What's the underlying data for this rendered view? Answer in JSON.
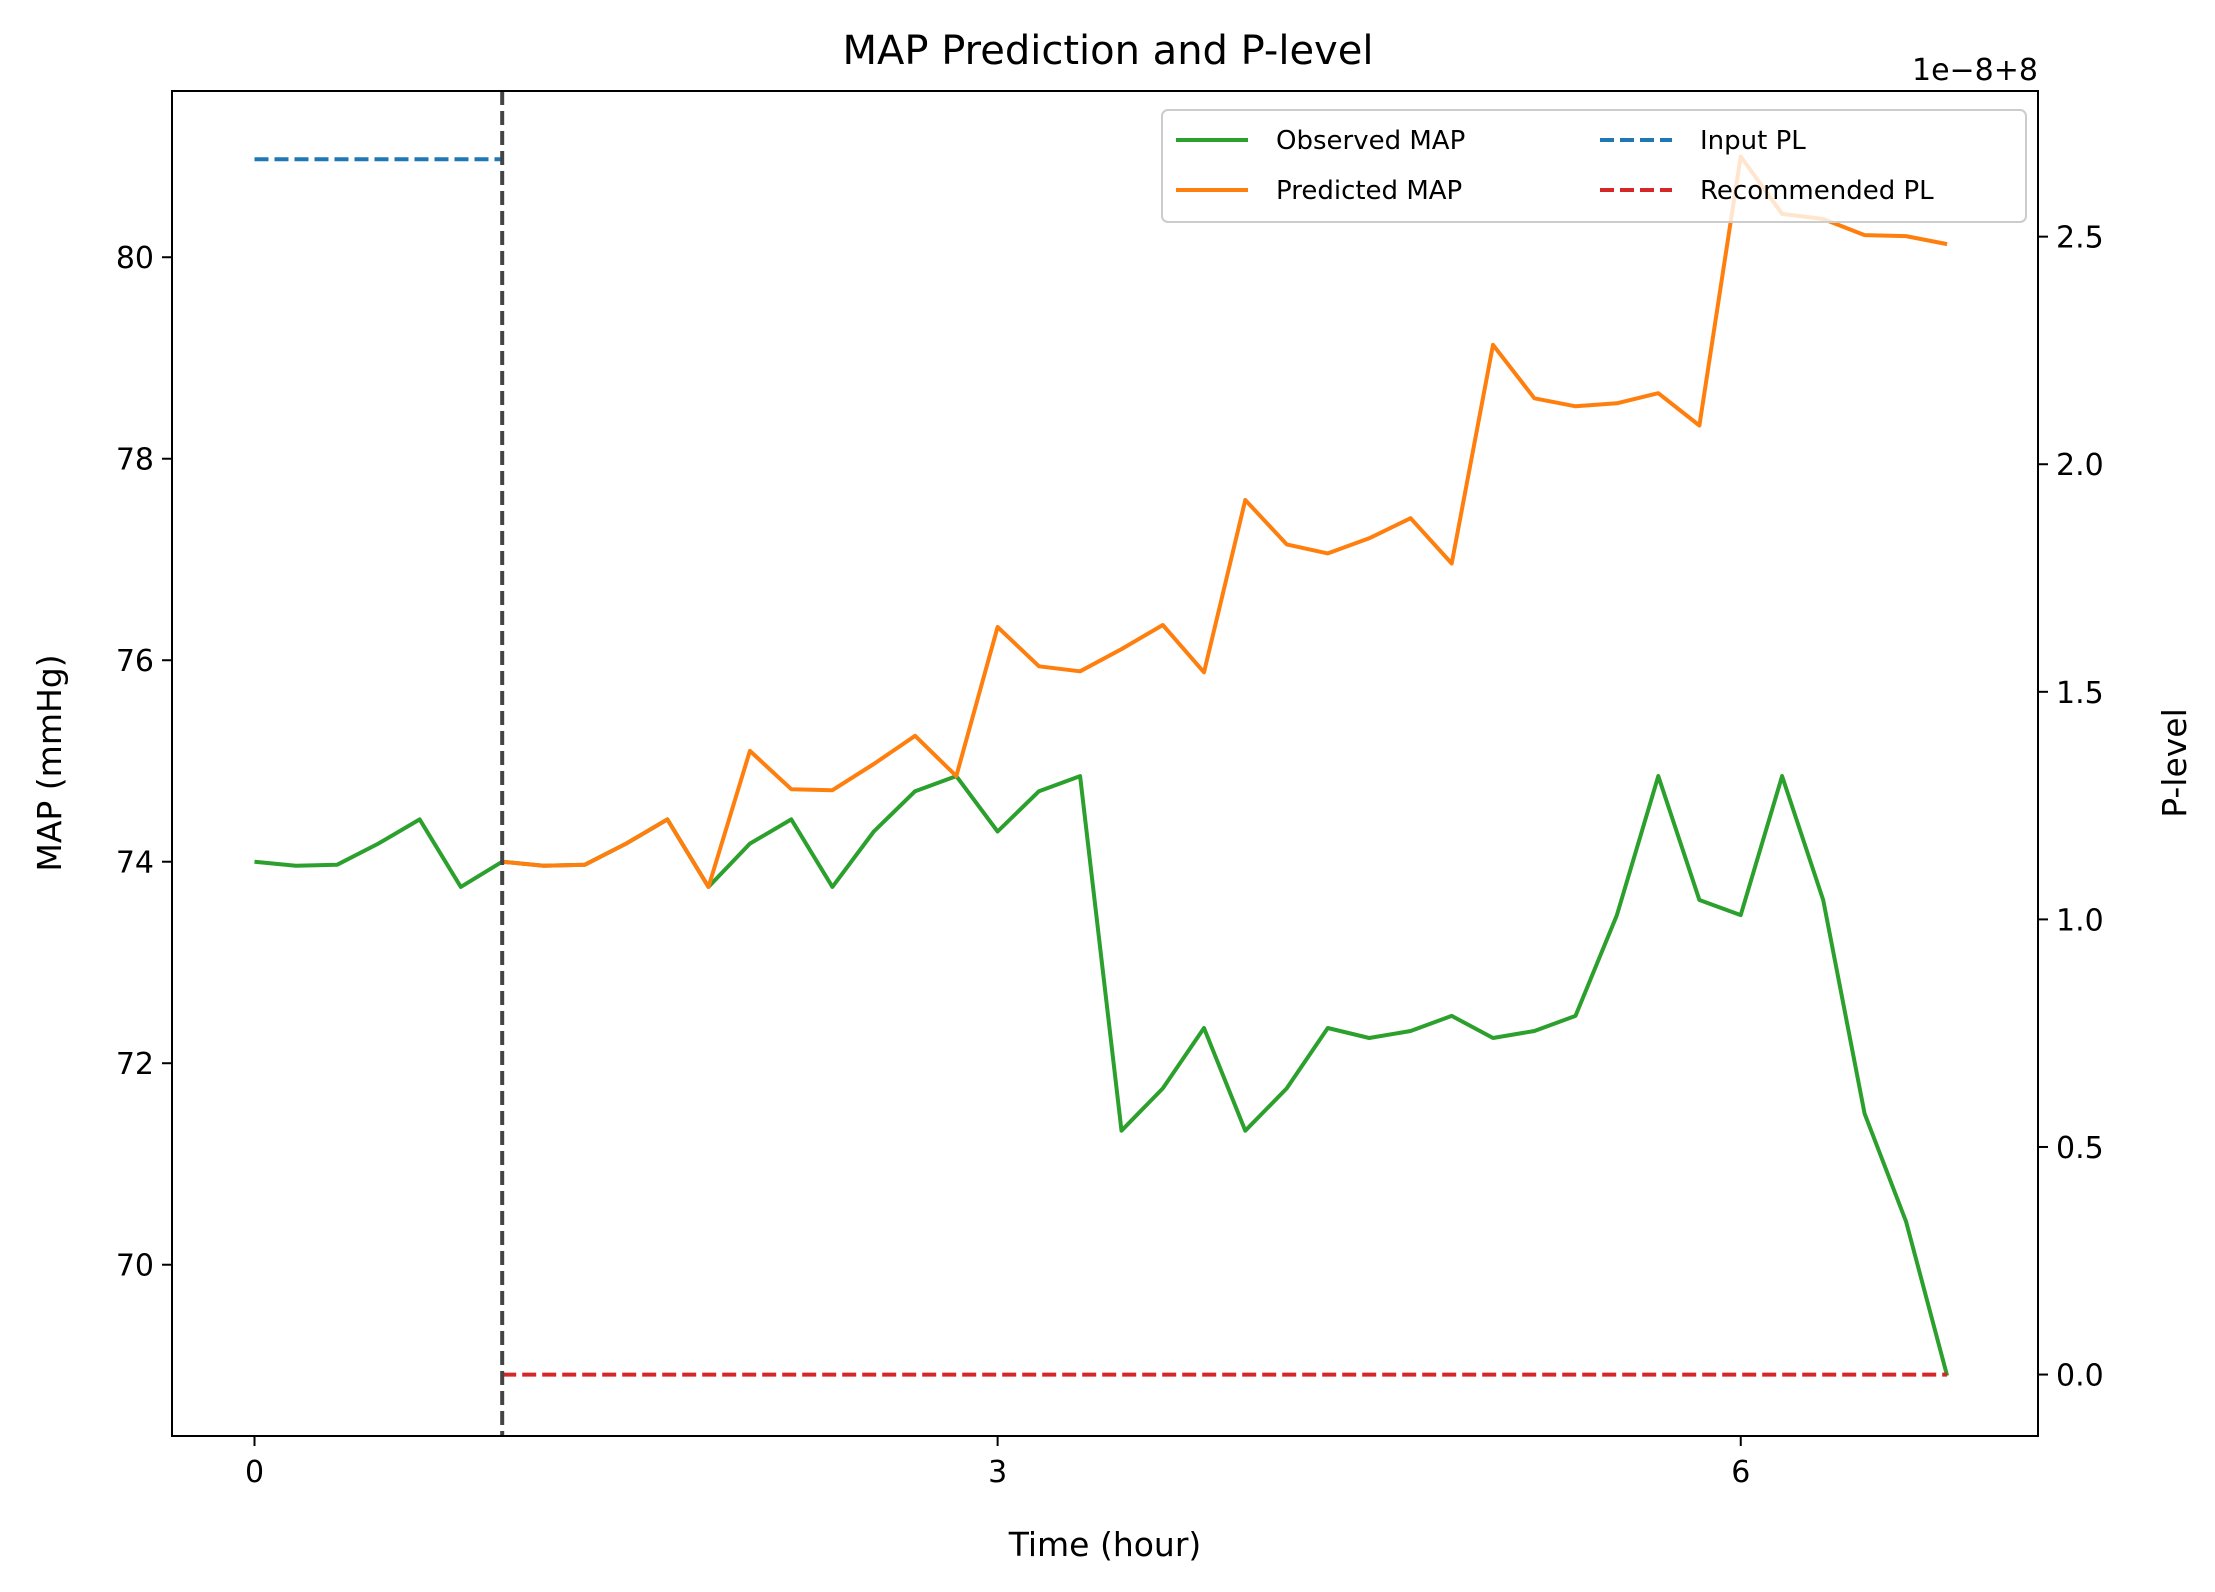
{
  "chart_data": {
    "type": "line",
    "title": "MAP Prediction and P-level",
    "xlabel": "Time (hour)",
    "ylabel": "MAP (mmHg)",
    "y2label": "P-level",
    "y2_offset_label": "1e−8+8",
    "xlim": [
      -0.333,
      7.2
    ],
    "ylim": [
      68.3,
      81.65
    ],
    "y2lim": [
      -0.135,
      2.82
    ],
    "xticks": [
      0,
      3,
      6
    ],
    "yticks": [
      70,
      72,
      74,
      76,
      78,
      80
    ],
    "y2ticks": [
      0.0,
      0.5,
      1.0,
      1.5,
      2.0,
      2.5
    ],
    "y2tick_labels": [
      "0.0",
      "0.5",
      "1.0",
      "1.5",
      "2.0",
      "2.5"
    ],
    "grid": false,
    "legend_position": "top-right",
    "legend_columns": 2,
    "current_time_marker": 1.0,
    "series": [
      {
        "name": "Observed MAP",
        "axis": "left",
        "style": "solid",
        "color": "#2ca02c",
        "x": [
          0,
          0.167,
          0.333,
          0.5,
          0.667,
          0.833,
          1.0,
          1.167,
          1.333,
          1.5,
          1.667,
          1.833,
          2.0,
          2.167,
          2.333,
          2.5,
          2.667,
          2.833,
          3.0,
          3.167,
          3.333,
          3.5,
          3.667,
          3.833,
          4.0,
          4.167,
          4.333,
          4.5,
          4.667,
          4.833,
          5.0,
          5.167,
          5.333,
          5.5,
          5.667,
          5.833,
          6.0,
          6.167,
          6.333,
          6.5,
          6.667,
          6.833
        ],
        "y": [
          74.0,
          73.96,
          73.97,
          74.18,
          74.42,
          73.75,
          74.0,
          73.96,
          73.97,
          74.18,
          74.42,
          73.75,
          74.18,
          74.42,
          73.75,
          74.3,
          74.7,
          74.85,
          74.3,
          74.7,
          74.85,
          71.33,
          71.75,
          72.35,
          71.33,
          71.75,
          72.35,
          72.25,
          72.32,
          72.47,
          72.25,
          72.32,
          72.47,
          73.47,
          74.85,
          73.62,
          73.47,
          74.85,
          73.62,
          71.5,
          70.43,
          68.9
        ]
      },
      {
        "name": "Predicted MAP",
        "axis": "left",
        "style": "solid",
        "color": "#ff7f0e",
        "x": [
          1.0,
          1.167,
          1.333,
          1.5,
          1.667,
          1.833,
          2.0,
          2.167,
          2.333,
          2.5,
          2.667,
          2.833,
          3.0,
          3.167,
          3.333,
          3.5,
          3.667,
          3.833,
          4.0,
          4.167,
          4.333,
          4.5,
          4.667,
          4.833,
          5.0,
          5.167,
          5.333,
          5.5,
          5.667,
          5.833,
          6.0,
          6.167,
          6.333,
          6.5,
          6.667,
          6.833
        ],
        "y": [
          74.0,
          73.96,
          73.97,
          74.18,
          74.42,
          73.75,
          75.1,
          74.72,
          74.71,
          74.97,
          75.25,
          74.85,
          76.33,
          75.94,
          75.89,
          76.11,
          76.35,
          75.88,
          77.59,
          77.15,
          77.06,
          77.21,
          77.41,
          76.96,
          79.13,
          78.6,
          78.52,
          78.55,
          78.65,
          78.33,
          81.0,
          80.43,
          80.38,
          80.22,
          80.21,
          80.13
        ]
      },
      {
        "name": "Input PL",
        "axis": "right",
        "style": "dashed",
        "color": "#1f77b4",
        "x": [
          0,
          1.0
        ],
        "y": [
          2.67,
          2.67
        ]
      },
      {
        "name": "Recommended PL",
        "axis": "right",
        "style": "dashed",
        "color": "#d62728",
        "x": [
          1.0,
          6.833
        ],
        "y": [
          0.0,
          0.0
        ]
      }
    ]
  }
}
